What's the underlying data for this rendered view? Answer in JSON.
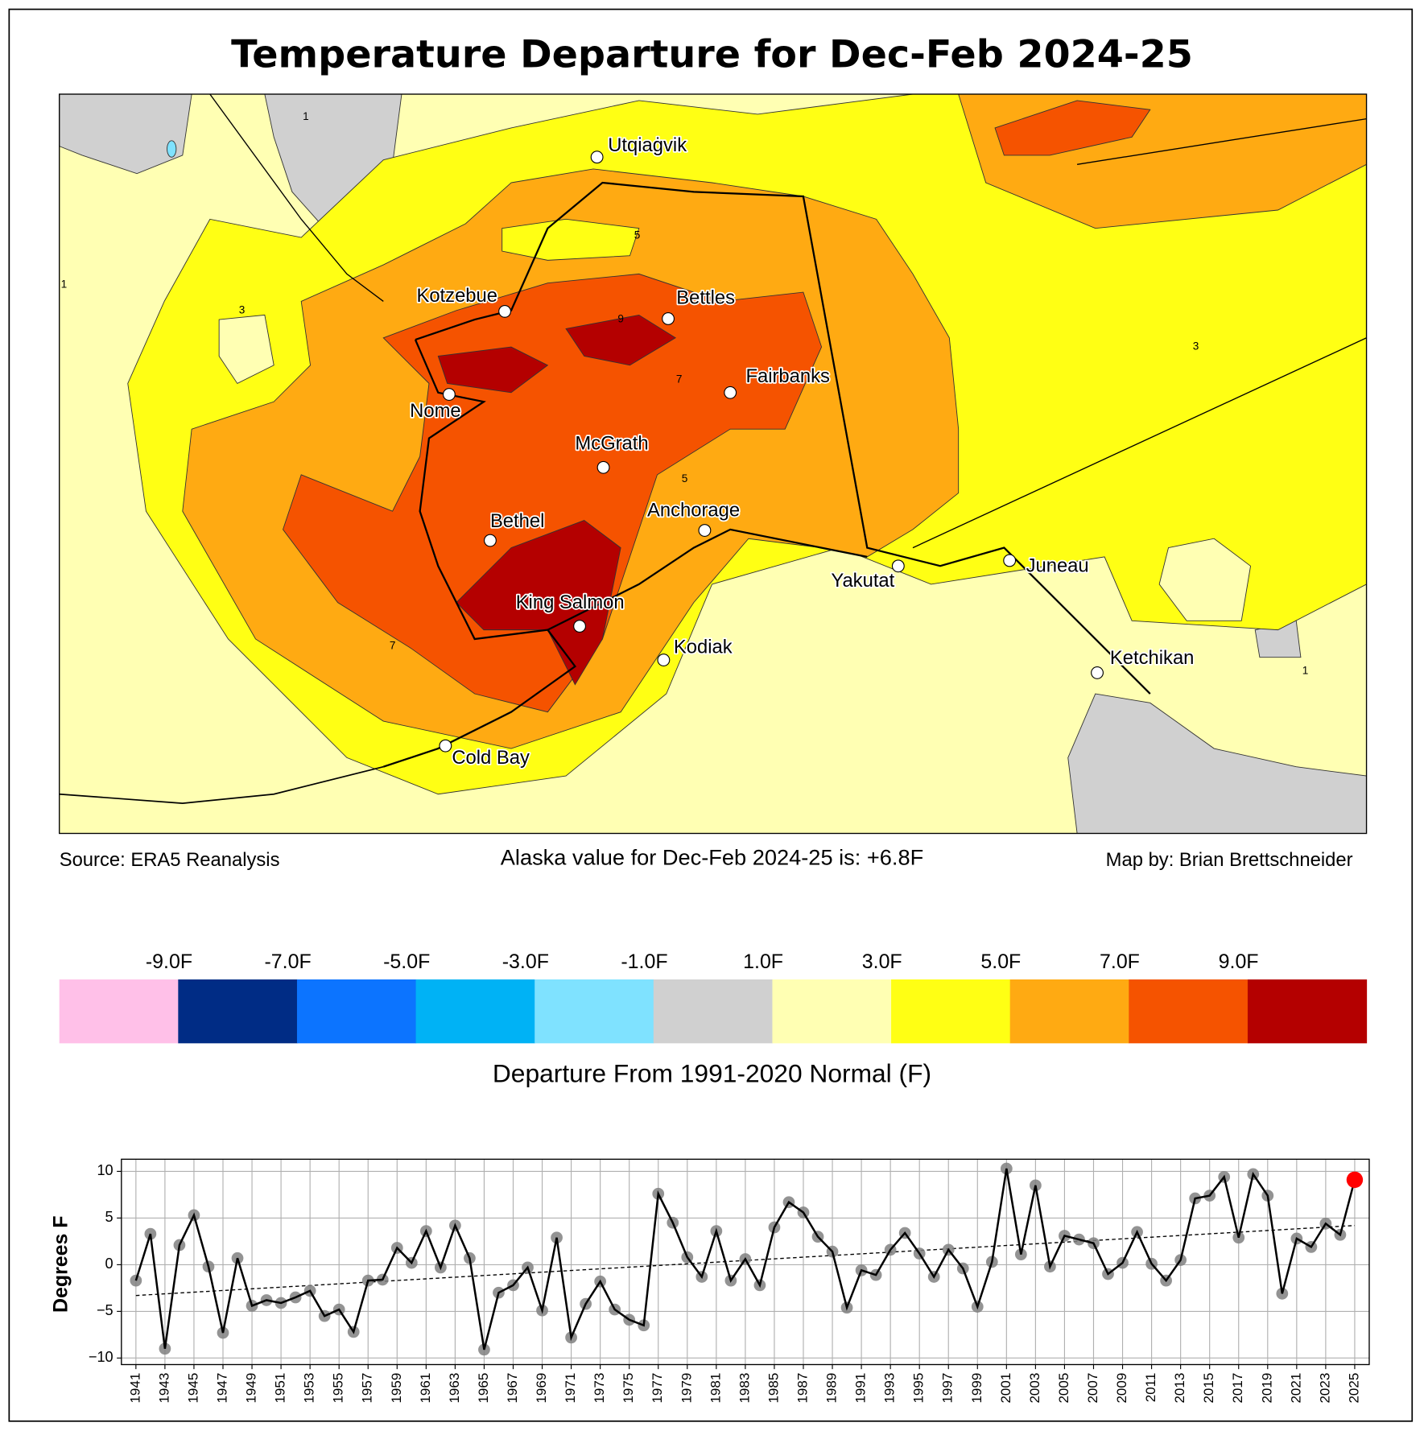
{
  "title": "Temperature Departure for Dec-Feb 2024-25",
  "source": "Source: ERA5 Reanalysis",
  "state_value": "Alaska value for Dec-Feb 2024-25 is: +6.8F",
  "credit": "Map by: Brian Brettschneider",
  "map": {
    "cities": [
      "Utqiaġvik",
      "Kotzebue",
      "Bettles",
      "Fairbanks",
      "Nome",
      "McGrath",
      "Anchorage",
      "Bethel",
      "King Salmon",
      "Kodiak",
      "Yakutat",
      "Juneau",
      "Ketchikan",
      "Cold Bay"
    ],
    "contour_labels": [
      "1",
      "1",
      "3",
      "5",
      "7",
      "9",
      "5",
      "3",
      "1",
      "7"
    ]
  },
  "colorbar": {
    "label": "Departure From 1991-2020 Normal (F)",
    "colors": [
      "#ffc0e8",
      "#002c85",
      "#0c74ff",
      "#00b2f5",
      "#7fe2ff",
      "#d0d0d0",
      "#ffffb3",
      "#ffff14",
      "#ffaa12",
      "#f55300",
      "#b40000"
    ],
    "ticks": [
      {
        "value": -9,
        "label": "-9.0F"
      },
      {
        "value": -7,
        "label": "-7.0F"
      },
      {
        "value": -5,
        "label": "-5.0F"
      },
      {
        "value": -3,
        "label": "-3.0F"
      },
      {
        "value": -1,
        "label": "-1.0F"
      },
      {
        "value": 1,
        "label": "1.0F"
      },
      {
        "value": 3,
        "label": "3.0F"
      },
      {
        "value": 5,
        "label": "5.0F"
      },
      {
        "value": 7,
        "label": "7.0F"
      },
      {
        "value": 9,
        "label": "9.0F"
      }
    ]
  },
  "chart_data": {
    "type": "line",
    "y_label": "Degrees F",
    "x": [
      1941,
      1942,
      1943,
      1944,
      1945,
      1946,
      1947,
      1948,
      1949,
      1950,
      1951,
      1952,
      1953,
      1954,
      1955,
      1956,
      1957,
      1958,
      1959,
      1960,
      1961,
      1962,
      1963,
      1964,
      1965,
      1966,
      1967,
      1968,
      1969,
      1970,
      1971,
      1972,
      1973,
      1974,
      1975,
      1976,
      1977,
      1978,
      1979,
      1980,
      1981,
      1982,
      1983,
      1984,
      1985,
      1986,
      1987,
      1988,
      1989,
      1990,
      1991,
      1992,
      1993,
      1994,
      1995,
      1996,
      1997,
      1998,
      1999,
      2000,
      2001,
      2002,
      2003,
      2004,
      2005,
      2006,
      2007,
      2008,
      2009,
      2010,
      2011,
      2012,
      2013,
      2014,
      2015,
      2016,
      2017,
      2018,
      2019,
      2020,
      2021,
      2022,
      2023,
      2024,
      2025
    ],
    "series": [
      {
        "color": "#000000",
        "marker_color": "#808080",
        "last_marker_color": "#ff0000",
        "values": [
          -1.7,
          3.3,
          -9.0,
          2.1,
          5.3,
          -0.2,
          -7.3,
          0.7,
          -4.4,
          -3.8,
          -4.1,
          -3.5,
          -2.8,
          -5.5,
          -4.8,
          -7.2,
          -1.7,
          -1.6,
          1.8,
          0.2,
          3.6,
          -0.3,
          4.2,
          0.7,
          -9.1,
          -3.0,
          -2.2,
          -0.3,
          -4.9,
          2.9,
          -7.8,
          -4.2,
          -1.8,
          -4.8,
          -5.9,
          -6.5,
          7.6,
          4.5,
          0.8,
          -1.3,
          3.6,
          -1.7,
          0.6,
          -2.2,
          4.0,
          6.7,
          5.6,
          3.0,
          1.4,
          -4.6,
          -0.6,
          -1.1,
          1.6,
          3.4,
          1.2,
          -1.3,
          1.6,
          -0.4,
          -4.5,
          0.3,
          10.3,
          1.1,
          8.5,
          -0.2,
          3.1,
          2.7,
          2.3,
          -1.0,
          0.2,
          3.5,
          0.1,
          -1.7,
          0.5,
          7.1,
          7.4,
          9.4,
          2.9,
          9.7,
          7.4,
          -3.1,
          2.8,
          1.9,
          4.4,
          3.2,
          9.1
        ]
      }
    ],
    "trend": {
      "x": [
        1941,
        2025
      ],
      "values": [
        -3.3,
        4.2
      ],
      "color": "#000000"
    },
    "xlim": [
      1940,
      2026
    ],
    "ylim": [
      -10.7,
      11.3
    ],
    "xticks": [
      1941,
      1943,
      1945,
      1947,
      1949,
      1951,
      1953,
      1955,
      1957,
      1959,
      1961,
      1963,
      1965,
      1967,
      1969,
      1971,
      1973,
      1975,
      1977,
      1979,
      1981,
      1983,
      1985,
      1987,
      1989,
      1991,
      1993,
      1995,
      1997,
      1999,
      2001,
      2003,
      2005,
      2007,
      2009,
      2011,
      2013,
      2015,
      2017,
      2019,
      2021,
      2023,
      2025
    ],
    "yticks": [
      {
        "value": -10,
        "label": "−10"
      },
      {
        "value": -5,
        "label": "−5"
      },
      0,
      5,
      10
    ],
    "grid": true
  }
}
